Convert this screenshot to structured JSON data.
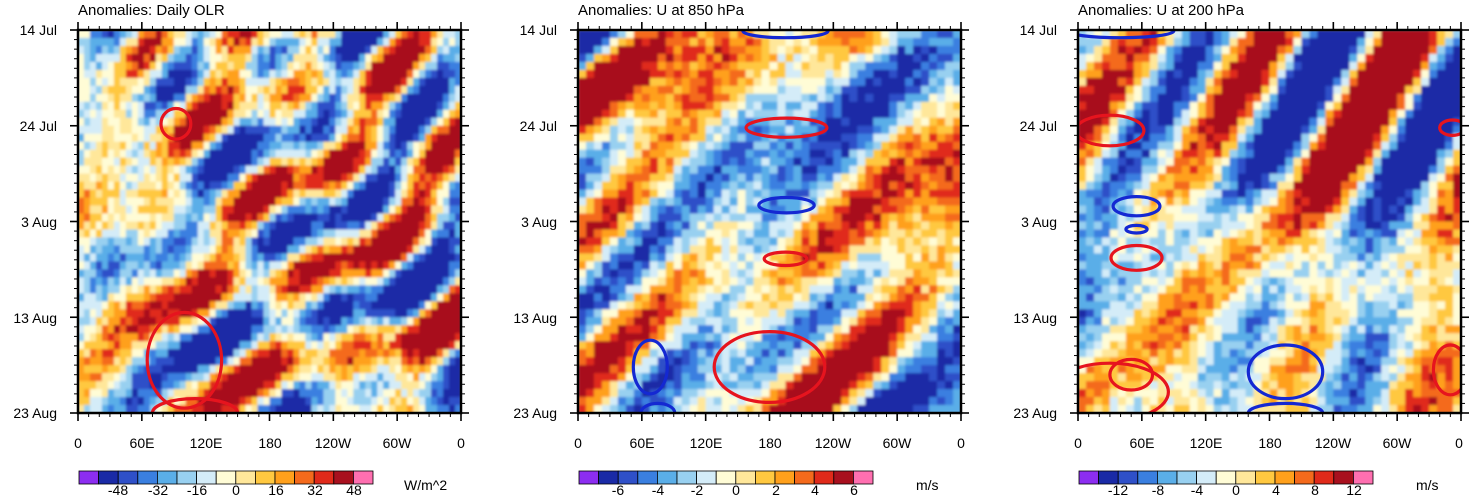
{
  "chart_data": [
    {
      "type": "heatmap",
      "title": "Anomalies: Daily OLR",
      "x_tick_labels": [
        "0",
        "60E",
        "120E",
        "180",
        "120W",
        "60W",
        "0"
      ],
      "x_range_deg_east": [
        0,
        360
      ],
      "y_tick_labels": [
        "14 Jul",
        "24 Jul",
        "3 Aug",
        "13 Aug",
        "23 Aug"
      ],
      "y_range_days": [
        0,
        40
      ],
      "colorbar": {
        "units": "W/m^2",
        "tick_labels": [
          "-48",
          "-32",
          "-16",
          "0",
          "16",
          "32",
          "48"
        ],
        "levels": [
          -48,
          -40,
          -32,
          -24,
          -16,
          -8,
          0,
          8,
          16,
          24,
          32,
          40,
          48
        ],
        "colors": [
          "#8c2df0",
          "#1a2aa6",
          "#2f50c8",
          "#3a7fe0",
          "#5aaee8",
          "#98d0f0",
          "#d4ecf8",
          "#fffcd6",
          "#ffe79a",
          "#ffc840",
          "#ffa01c",
          "#f46a1c",
          "#e02a1a",
          "#a8101e",
          "#ff6fb0"
        ]
      },
      "contours": [
        {
          "color": "#e6141e",
          "center": [
            92,
            9.8
          ],
          "radius": [
            14,
            1.6
          ]
        },
        {
          "color": "#e6141e",
          "center": [
            100,
            34.5
          ],
          "radius": [
            35,
            5
          ]
        },
        {
          "color": "#e6141e",
          "center": [
            110,
            40
          ],
          "radius": [
            40,
            1.5
          ]
        }
      ]
    },
    {
      "type": "heatmap",
      "title": "Anomalies: U at 850 hPa",
      "x_tick_labels": [
        "0",
        "60E",
        "120E",
        "180",
        "120W",
        "60W",
        "0"
      ],
      "x_range_deg_east": [
        0,
        360
      ],
      "y_tick_labels": [
        "14 Jul",
        "24 Jul",
        "3 Aug",
        "13 Aug",
        "23 Aug"
      ],
      "y_range_days": [
        0,
        40
      ],
      "colorbar": {
        "units": "m/s",
        "tick_labels": [
          "-6",
          "-4",
          "-2",
          "0",
          "2",
          "4",
          "6"
        ],
        "levels": [
          -7,
          -6,
          -5,
          -4,
          -3,
          -2,
          -1,
          0,
          1,
          2,
          3,
          4,
          5,
          6,
          7
        ],
        "colors": [
          "#8c2df0",
          "#1a2aa6",
          "#2f50c8",
          "#3a7fe0",
          "#5aaee8",
          "#98d0f0",
          "#d4ecf8",
          "#fffcd6",
          "#ffe79a",
          "#ffc840",
          "#ffa01c",
          "#f46a1c",
          "#e02a1a",
          "#a8101e",
          "#ff6fb0"
        ]
      },
      "contours": [
        {
          "color": "#1428d2",
          "center": [
            195,
            0.1
          ],
          "radius": [
            40,
            0.7
          ]
        },
        {
          "color": "#e6141e",
          "center": [
            196,
            10.2
          ],
          "radius": [
            38,
            1.0
          ]
        },
        {
          "color": "#1428d2",
          "center": [
            196,
            18.3
          ],
          "radius": [
            26,
            0.8
          ]
        },
        {
          "color": "#e6141e",
          "center": [
            195,
            23.9
          ],
          "radius": [
            20,
            0.7
          ]
        },
        {
          "color": "#1428d2",
          "center": [
            68,
            35.2
          ],
          "radius": [
            16,
            2.8
          ]
        },
        {
          "color": "#e6141e",
          "center": [
            180,
            35.2
          ],
          "radius": [
            52,
            3.7
          ]
        },
        {
          "color": "#1428d2",
          "center": [
            75,
            40
          ],
          "radius": [
            16,
            1.0
          ]
        }
      ]
    },
    {
      "type": "heatmap",
      "title": "Anomalies: U at 200 hPa",
      "x_tick_labels": [
        "0",
        "60E",
        "120E",
        "180",
        "120W",
        "60W",
        "0"
      ],
      "x_range_deg_east": [
        0,
        360
      ],
      "y_tick_labels": [
        "14 Jul",
        "24 Jul",
        "3 Aug",
        "13 Aug",
        "23 Aug"
      ],
      "y_range_days": [
        0,
        40
      ],
      "colorbar": {
        "units": "m/s",
        "tick_labels": [
          "-12",
          "-8",
          "-4",
          "0",
          "4",
          "8",
          "12"
        ],
        "levels": [
          -14,
          -12,
          -10,
          -8,
          -6,
          -4,
          -2,
          0,
          2,
          4,
          6,
          8,
          10,
          12,
          14
        ],
        "colors": [
          "#8c2df0",
          "#1a2aa6",
          "#2f50c8",
          "#3a7fe0",
          "#5aaee8",
          "#98d0f0",
          "#d4ecf8",
          "#fffcd6",
          "#ffe79a",
          "#ffc840",
          "#ffa01c",
          "#f46a1c",
          "#e02a1a",
          "#a8101e",
          "#ff6fb0"
        ]
      },
      "contours": [
        {
          "color": "#1428d2",
          "center": [
            40,
            0.1
          ],
          "radius": [
            50,
            0.7
          ]
        },
        {
          "color": "#e6141e",
          "center": [
            30,
            10.5
          ],
          "radius": [
            32,
            1.6
          ]
        },
        {
          "color": "#e6141e",
          "center": [
            352,
            10.2
          ],
          "radius": [
            12,
            0.8
          ]
        },
        {
          "color": "#1428d2",
          "center": [
            55,
            18.4
          ],
          "radius": [
            22,
            1.0
          ]
        },
        {
          "color": "#1428d2",
          "center": [
            55,
            20.8
          ],
          "radius": [
            10,
            0.4
          ]
        },
        {
          "color": "#e6141e",
          "center": [
            55,
            23.8
          ],
          "radius": [
            24,
            1.3
          ]
        },
        {
          "color": "#1428d2",
          "center": [
            195,
            35.7
          ],
          "radius": [
            35,
            2.8
          ]
        },
        {
          "color": "#e6141e",
          "center": [
            50,
            36.0
          ],
          "radius": [
            20,
            1.6
          ]
        },
        {
          "color": "#e6141e",
          "center": [
            350,
            35.5
          ],
          "radius": [
            16,
            2.6
          ]
        },
        {
          "color": "#e6141e",
          "center": [
            30,
            37.8
          ],
          "radius": [
            55,
            3.0
          ]
        },
        {
          "color": "#1428d2",
          "center": [
            195,
            40
          ],
          "radius": [
            35,
            1.0
          ]
        }
      ]
    }
  ]
}
